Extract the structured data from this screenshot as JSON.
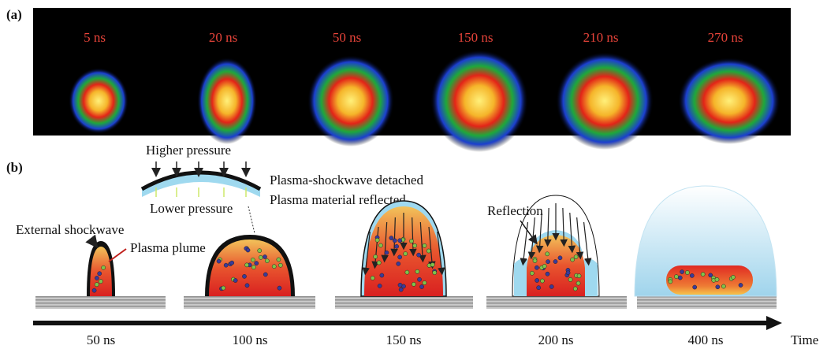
{
  "panel_a": {
    "label": "(a)",
    "frames": [
      "5 ns",
      "20 ns",
      "50 ns",
      "150 ns",
      "210 ns",
      "270 ns"
    ]
  },
  "panel_b": {
    "label": "(b)",
    "inset": {
      "top": "Higher pressure",
      "bottom": "Lower pressure"
    },
    "notes": [
      "Plasma-shockwave detached",
      "Plasma material reflected"
    ],
    "callouts": {
      "shockwave": "External shockwave",
      "plume": "Plasma plume",
      "reflection": "Reflection"
    },
    "timeline": {
      "stages": [
        "50 ns",
        "100 ns",
        "150 ns",
        "200 ns",
        "400 ns"
      ],
      "axis": "Time"
    }
  }
}
